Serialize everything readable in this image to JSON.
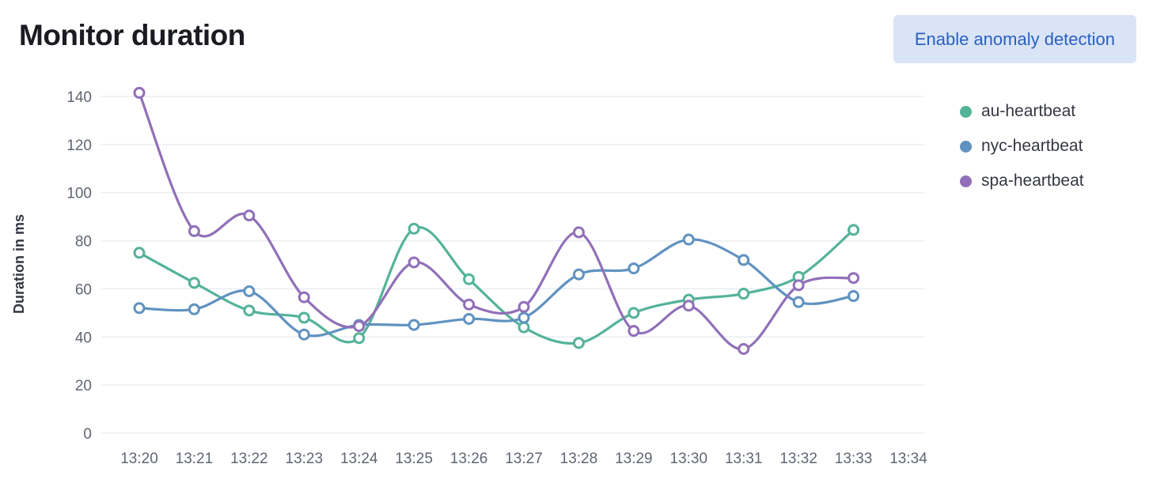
{
  "header": {
    "title": "Monitor duration",
    "button_label": "Enable anomaly detection"
  },
  "ui_colors": {
    "button_bg": "#d9e4f6",
    "button_text": "#2b5fc0",
    "grid": "#e9edf2",
    "tick_label": "#5f6672",
    "axis_title": "#343741"
  },
  "chart_data": {
    "type": "line",
    "title": "Monitor duration",
    "xlabel": "",
    "ylabel": "Duration in ms",
    "ylim": [
      0,
      140
    ],
    "y_ticks": [
      0,
      20,
      40,
      60,
      80,
      100,
      120,
      140
    ],
    "x_ticks": [
      "13:20",
      "13:21",
      "13:22",
      "13:23",
      "13:24",
      "13:25",
      "13:26",
      "13:27",
      "13:28",
      "13:29",
      "13:30",
      "13:31",
      "13:32",
      "13:33",
      "13:34"
    ],
    "categories": [
      "13:20",
      "13:21",
      "13:22",
      "13:23",
      "13:24",
      "13:25",
      "13:26",
      "13:27",
      "13:28",
      "13:29",
      "13:30",
      "13:31",
      "13:32",
      "13:33"
    ],
    "grid": "horizontal",
    "legend_position": "right",
    "curve": "smooth",
    "series": [
      {
        "name": "au-heartbeat",
        "color": "#54B399",
        "values": [
          75,
          62.5,
          51,
          48,
          39.5,
          85,
          64,
          44,
          37.5,
          50,
          55.5,
          58,
          65,
          84.5
        ]
      },
      {
        "name": "nyc-heartbeat",
        "color": "#6092C0",
        "values": [
          52,
          51.5,
          59,
          41,
          45,
          45,
          47.5,
          48,
          66,
          68.5,
          80.5,
          72,
          54.5,
          57
        ]
      },
      {
        "name": "spa-heartbeat",
        "color": "#9170B8",
        "values": [
          141.5,
          84,
          90.5,
          56.5,
          44.5,
          71,
          53.5,
          52.5,
          83.5,
          42.5,
          53,
          35,
          61.5,
          64.5
        ]
      }
    ]
  }
}
